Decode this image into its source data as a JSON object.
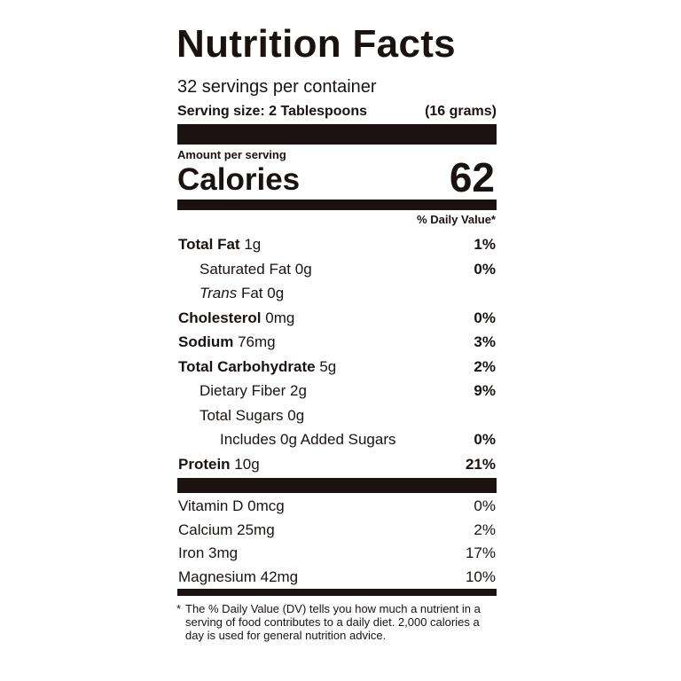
{
  "label": {
    "title": "Nutrition Facts",
    "servings": "32 servings per container",
    "serving_size": {
      "label": "Serving size:",
      "amount": "2 Tablespoons",
      "weight": "(16 grams)"
    },
    "amount_per_serving": "Amount per serving",
    "calories": {
      "label": "Calories",
      "value": "62"
    },
    "daily_value_header": "% Daily Value*",
    "nutrients": [
      {
        "name": "Total Fat",
        "amount": "1g",
        "dv": "1%"
      },
      {
        "name": "Saturated Fat",
        "amount": "0g",
        "dv": "0%"
      },
      {
        "name_italic": "Trans",
        "name": "Fat",
        "amount": "0g"
      },
      {
        "name": "Cholesterol",
        "amount": "0mg",
        "dv": "0%"
      },
      {
        "name": "Sodium",
        "amount": "76mg",
        "dv": "3%"
      },
      {
        "name": "Total Carbohydrate",
        "amount": "5g",
        "dv": "2%"
      },
      {
        "name": "Dietary Fiber",
        "amount": "2g",
        "dv": "9%"
      },
      {
        "name": "Total Sugars",
        "amount": "0g"
      },
      {
        "name": "Includes 0g Added Sugars",
        "dv": "0%"
      },
      {
        "name": "Protein",
        "amount": "10g",
        "dv": "21%"
      }
    ],
    "vitamins": [
      {
        "name": "Vitamin D",
        "amount": "0mcg",
        "dv": "0%"
      },
      {
        "name": "Calcium",
        "amount": "25mg",
        "dv": "2%"
      },
      {
        "name": "Iron",
        "amount": "3mg",
        "dv": "17%"
      },
      {
        "name": "Magnesium",
        "amount": "42mg",
        "dv": "10%"
      }
    ],
    "footnote": {
      "marker": "*",
      "text": "The % Daily Value (DV) tells you how much a nutrient in a serving of food contributes to a daily diet. 2,000 calories a day is used for general nutrition advice."
    }
  }
}
